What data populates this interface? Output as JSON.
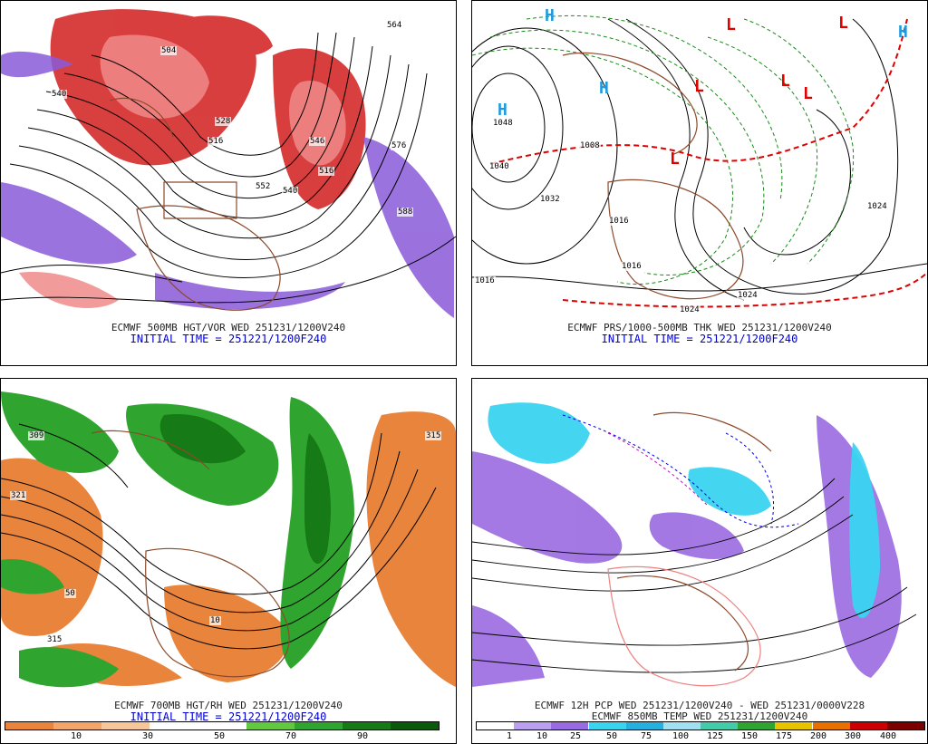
{
  "panels": [
    {
      "id": "p500",
      "caption": "ECMWF 500MB HGT/VOR WED 251231/1200V240",
      "initial": "INITIAL TIME = 251221/1200F240",
      "contour_labels": [
        "564",
        "504",
        "516",
        "528",
        "540",
        "552",
        "546",
        "576",
        "588",
        "540",
        "516"
      ]
    },
    {
      "id": "pprs",
      "caption": "ECMWF PRS/1000-500MB THK WED 251231/1200V240",
      "initial": "INITIAL TIME = 251221/1200F240",
      "contour_labels": [
        "1048",
        "1040",
        "1032",
        "1016",
        "1024",
        "1008",
        "1016",
        "1024",
        "1016",
        "1024"
      ],
      "highs": [
        "H",
        "H",
        "H",
        "H"
      ],
      "lows": [
        "L",
        "L",
        "L",
        "L",
        "L",
        "L"
      ]
    },
    {
      "id": "p700",
      "caption": "ECMWF 700MB HGT/RH WED 251231/1200V240",
      "initial": "INITIAL TIME = 251221/1200F240",
      "contour_labels": [
        "309",
        "321",
        "315",
        "315",
        "10",
        "50"
      ],
      "colorbar": {
        "ticks": [
          "10",
          "30",
          "50",
          "70",
          "90"
        ],
        "colors": [
          "#e8843c",
          "#f2a669",
          "#f7c69a",
          "#ffffff",
          "#ffffff",
          "#62c842",
          "#2fa52f",
          "#167a16",
          "#0b5a0b"
        ]
      }
    },
    {
      "id": "ppcp",
      "caption": "ECMWF 12H PCP WED 251231/1200V240 - WED 251231/0000V228",
      "initial": "ECMWF 850MB TEMP WED 251231/1200V240",
      "colorbar": {
        "ticks": [
          "1",
          "10",
          "25",
          "50",
          "75",
          "100",
          "125",
          "150",
          "175",
          "200",
          "300",
          "400"
        ],
        "colors": [
          "#ffffff",
          "#bca0f0",
          "#9a6ae0",
          "#3ad4f0",
          "#25b0e0",
          "#a0e0f0",
          "#44ccaa",
          "#2fa52f",
          "#e8c400",
          "#e87000",
          "#cc0000",
          "#7a0000"
        ]
      }
    }
  ]
}
